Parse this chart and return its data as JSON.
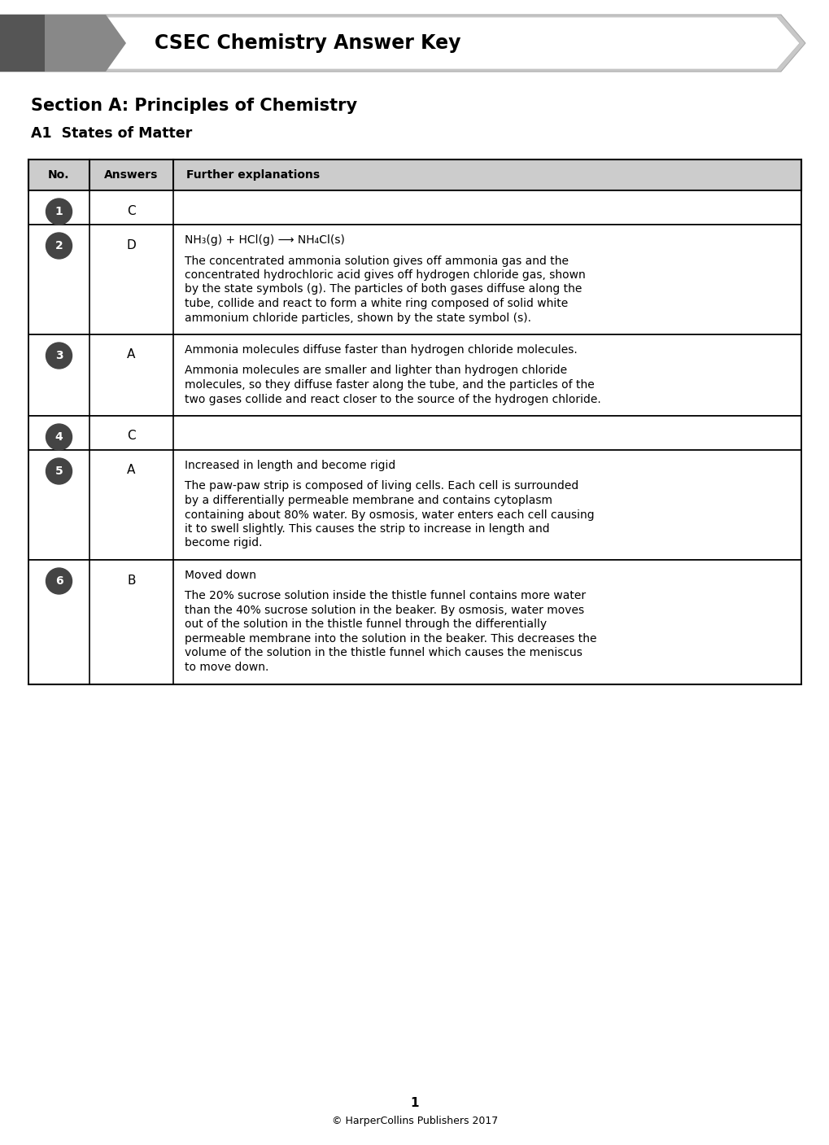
{
  "title": "CSEC Chemistry Answer Key",
  "section": "Section A: Principles of Chemistry",
  "subsection": "A1  States of Matter",
  "header": [
    "No.",
    "Answers",
    "Further explanations"
  ],
  "rows": [
    {
      "no": "1",
      "answer": "C",
      "expl_lines": []
    },
    {
      "no": "2",
      "answer": "D",
      "expl_lines": [
        {
          "text": "NH₃(g) + HCl(g) ⟶ NH₄Cl(s)",
          "bold": false,
          "extra_after": 8
        },
        {
          "text": "The concentrated ammonia solution gives off ammonia gas and the",
          "bold": false,
          "extra_after": 0
        },
        {
          "text": "concentrated hydrochloric acid gives off hydrogen chloride gas, shown",
          "bold": false,
          "extra_after": 0
        },
        {
          "text": "by the state symbols (g). The particles of both gases diffuse along the",
          "bold": false,
          "extra_after": 0
        },
        {
          "text": "tube, collide and react to form a white ring composed of solid white",
          "bold": false,
          "extra_after": 0
        },
        {
          "text": "ammonium chloride particles, shown by the state symbol (s).",
          "bold": false,
          "extra_after": 0
        }
      ]
    },
    {
      "no": "3",
      "answer": "A",
      "expl_lines": [
        {
          "text": "Ammonia molecules diffuse faster than hydrogen chloride molecules.",
          "bold": false,
          "extra_after": 8
        },
        {
          "text": "Ammonia molecules are smaller and lighter than hydrogen chloride",
          "bold": false,
          "extra_after": 0
        },
        {
          "text": "molecules, so they diffuse faster along the tube, and the particles of the",
          "bold": false,
          "extra_after": 0
        },
        {
          "text": "two gases collide and react closer to the source of the hydrogen chloride.",
          "bold": false,
          "extra_after": 0
        }
      ]
    },
    {
      "no": "4",
      "answer": "C",
      "expl_lines": []
    },
    {
      "no": "5",
      "answer": "A",
      "expl_lines": [
        {
          "text": "Increased in length and become rigid",
          "bold": false,
          "extra_after": 8
        },
        {
          "text": "The paw-paw strip is composed of living cells. Each cell is surrounded",
          "bold": false,
          "extra_after": 0
        },
        {
          "text": "by a differentially permeable membrane and contains cytoplasm",
          "bold": false,
          "extra_after": 0
        },
        {
          "text": "containing about 80% water. By osmosis, water enters each cell causing",
          "bold": false,
          "extra_after": 0
        },
        {
          "text": "it to swell slightly. This causes the strip to increase in length and",
          "bold": false,
          "extra_after": 0
        },
        {
          "text": "become rigid.",
          "bold": false,
          "extra_after": 0
        }
      ]
    },
    {
      "no": "6",
      "answer": "B",
      "expl_lines": [
        {
          "text": "Moved down",
          "bold": false,
          "extra_after": 8
        },
        {
          "text": "The 20% sucrose solution inside the thistle funnel contains more water",
          "bold": false,
          "extra_after": 0
        },
        {
          "text": "than the 40% sucrose solution in the beaker. By osmosis, water moves",
          "bold": false,
          "extra_after": 0
        },
        {
          "text": "out of the solution in the thistle funnel through the differentially",
          "bold": false,
          "extra_after": 0
        },
        {
          "text": "permeable membrane into the solution in the beaker. This decreases the",
          "bold": false,
          "extra_after": 0
        },
        {
          "text": "volume of the solution in the thistle funnel which causes the meniscus",
          "bold": false,
          "extra_after": 0
        },
        {
          "text": "to move down.",
          "bold": false,
          "extra_after": 0
        }
      ]
    }
  ],
  "header_bg": "#cccccc",
  "circle_color": "#444444",
  "circle_text_color": "#ffffff",
  "bg_color": "#ffffff",
  "page_num": "1",
  "copyright": "© HarperCollins Publishers 2017"
}
